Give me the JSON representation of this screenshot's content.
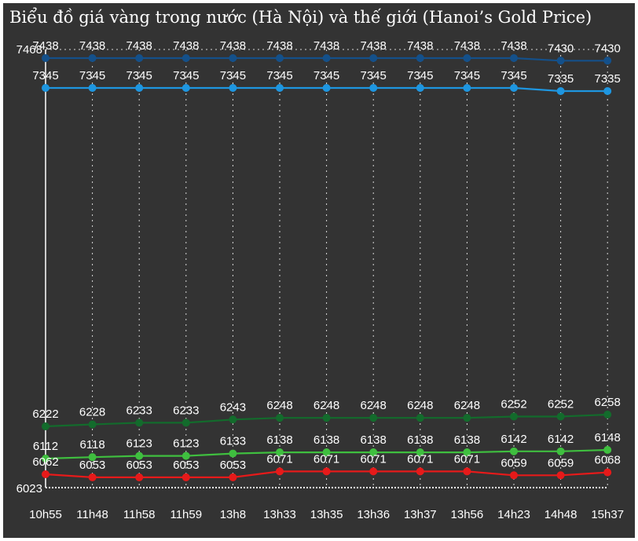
{
  "chart_data": {
    "type": "line",
    "title": "Biểu đồ giá vàng trong nước (Hà Nội) và thế giới (Hanoi’s Gold Price)",
    "categories": [
      "10h55",
      "11h48",
      "11h58",
      "11h59",
      "13h8",
      "13h33",
      "13h35",
      "13h36",
      "13h37",
      "13h56",
      "14h23",
      "14h48",
      "15h37"
    ],
    "ylim": [
      6023,
      7468
    ],
    "y_tick_labels": [
      "7468",
      "6023"
    ],
    "grid": "vertical-dotted",
    "series": [
      {
        "color": "#14508a",
        "values": [
          7438,
          7438,
          7438,
          7438,
          7438,
          7438,
          7438,
          7438,
          7438,
          7438,
          7438,
          7430,
          7430
        ]
      },
      {
        "color": "#1e96e0",
        "values": [
          7345,
          7345,
          7345,
          7345,
          7345,
          7345,
          7345,
          7345,
          7345,
          7345,
          7345,
          7335,
          7335
        ]
      },
      {
        "color": "#136b2c",
        "values": [
          6222,
          6228,
          6233,
          6233,
          6243,
          6248,
          6248,
          6248,
          6248,
          6248,
          6252,
          6252,
          6258
        ]
      },
      {
        "color": "#3fbf3f",
        "values": [
          6112,
          6118,
          6123,
          6123,
          6133,
          6138,
          6138,
          6138,
          6138,
          6138,
          6142,
          6142,
          6148
        ]
      },
      {
        "color": "#e61a1a",
        "values": [
          6062,
          6053,
          6053,
          6053,
          6053,
          6071,
          6071,
          6071,
          6071,
          6071,
          6059,
          6059,
          6068
        ]
      }
    ]
  }
}
